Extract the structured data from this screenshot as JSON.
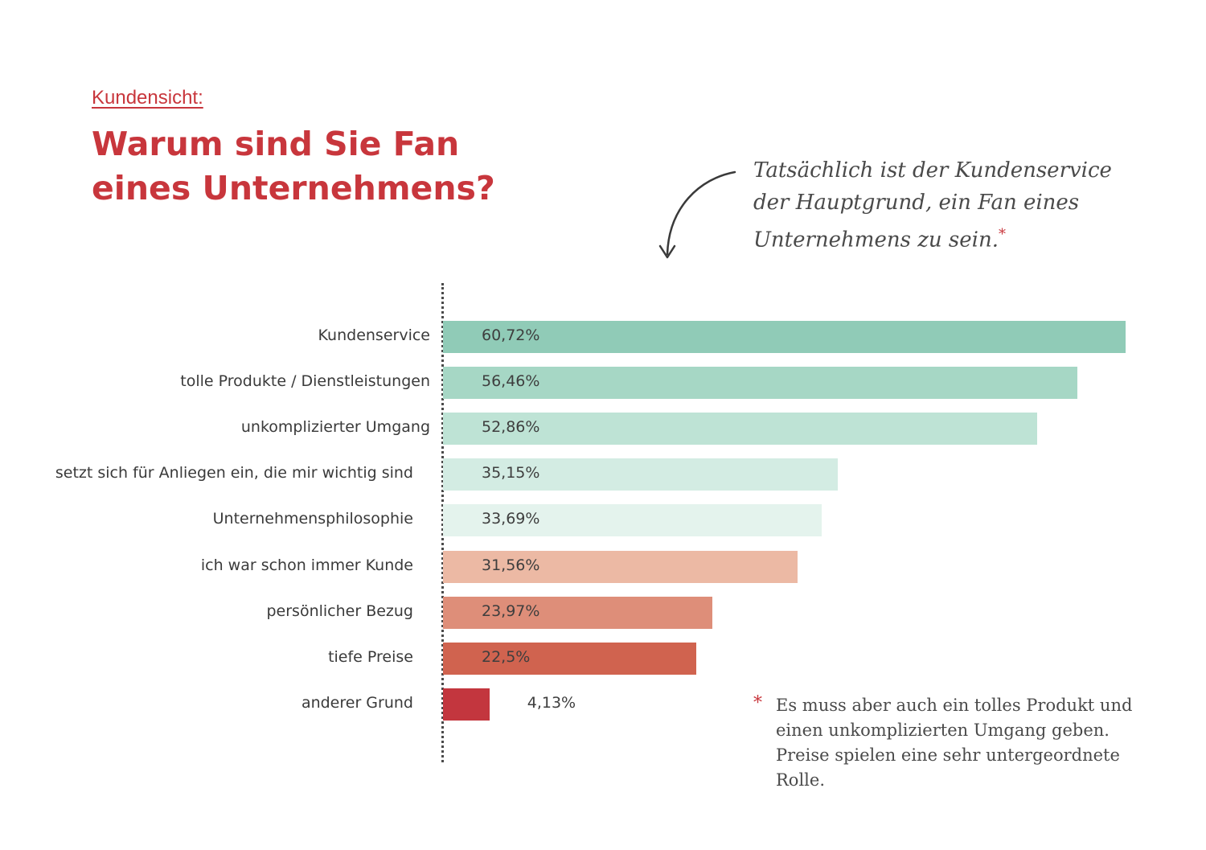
{
  "header": {
    "kicker": "Kundensicht:",
    "title_line1": "Warum sind Sie Fan",
    "title_line2": "eines Unternehmens?"
  },
  "callout": {
    "line1": "Tatsächlich ist der Kundenservice",
    "line2": "der Hauptgrund, ein Fan eines",
    "line3": "Unternehmens zu sein.",
    "marker": "*"
  },
  "footnote": {
    "marker": "*",
    "line1": "Es muss aber auch ein tolles Produkt und",
    "line2": "einen unkomplizierten Umgang geben.",
    "line3": "Preise spielen eine sehr untergeordnete Rolle."
  },
  "chart_data": {
    "type": "bar",
    "orientation": "horizontal",
    "categories": [
      "Kundenservice",
      "tolle Produkte / Dienstleistungen",
      "unkomplizierter Umgang",
      "setzt sich für Anliegen ein, die mir wichtig sind",
      "Unternehmensphilosophie",
      "ich war schon immer Kunde",
      "persönlicher Bezug",
      "tiefe Preise",
      "anderer Grund"
    ],
    "values": [
      60.72,
      56.46,
      52.86,
      35.15,
      33.69,
      31.56,
      23.97,
      22.5,
      4.13
    ],
    "value_labels": [
      "60,72%",
      "56,46%",
      "52,86%",
      "35,15%",
      "33,69%",
      "31,56%",
      "23,97%",
      "22,5%",
      "4,13%"
    ],
    "colors": [
      "#90cbb7",
      "#a6d7c5",
      "#bee3d5",
      "#d3ece3",
      "#e4f3ed",
      "#ecb9a4",
      "#de8e79",
      "#d0634f",
      "#c3363e"
    ],
    "xlim": [
      0,
      60.72
    ],
    "grid": false,
    "legend": "none"
  }
}
